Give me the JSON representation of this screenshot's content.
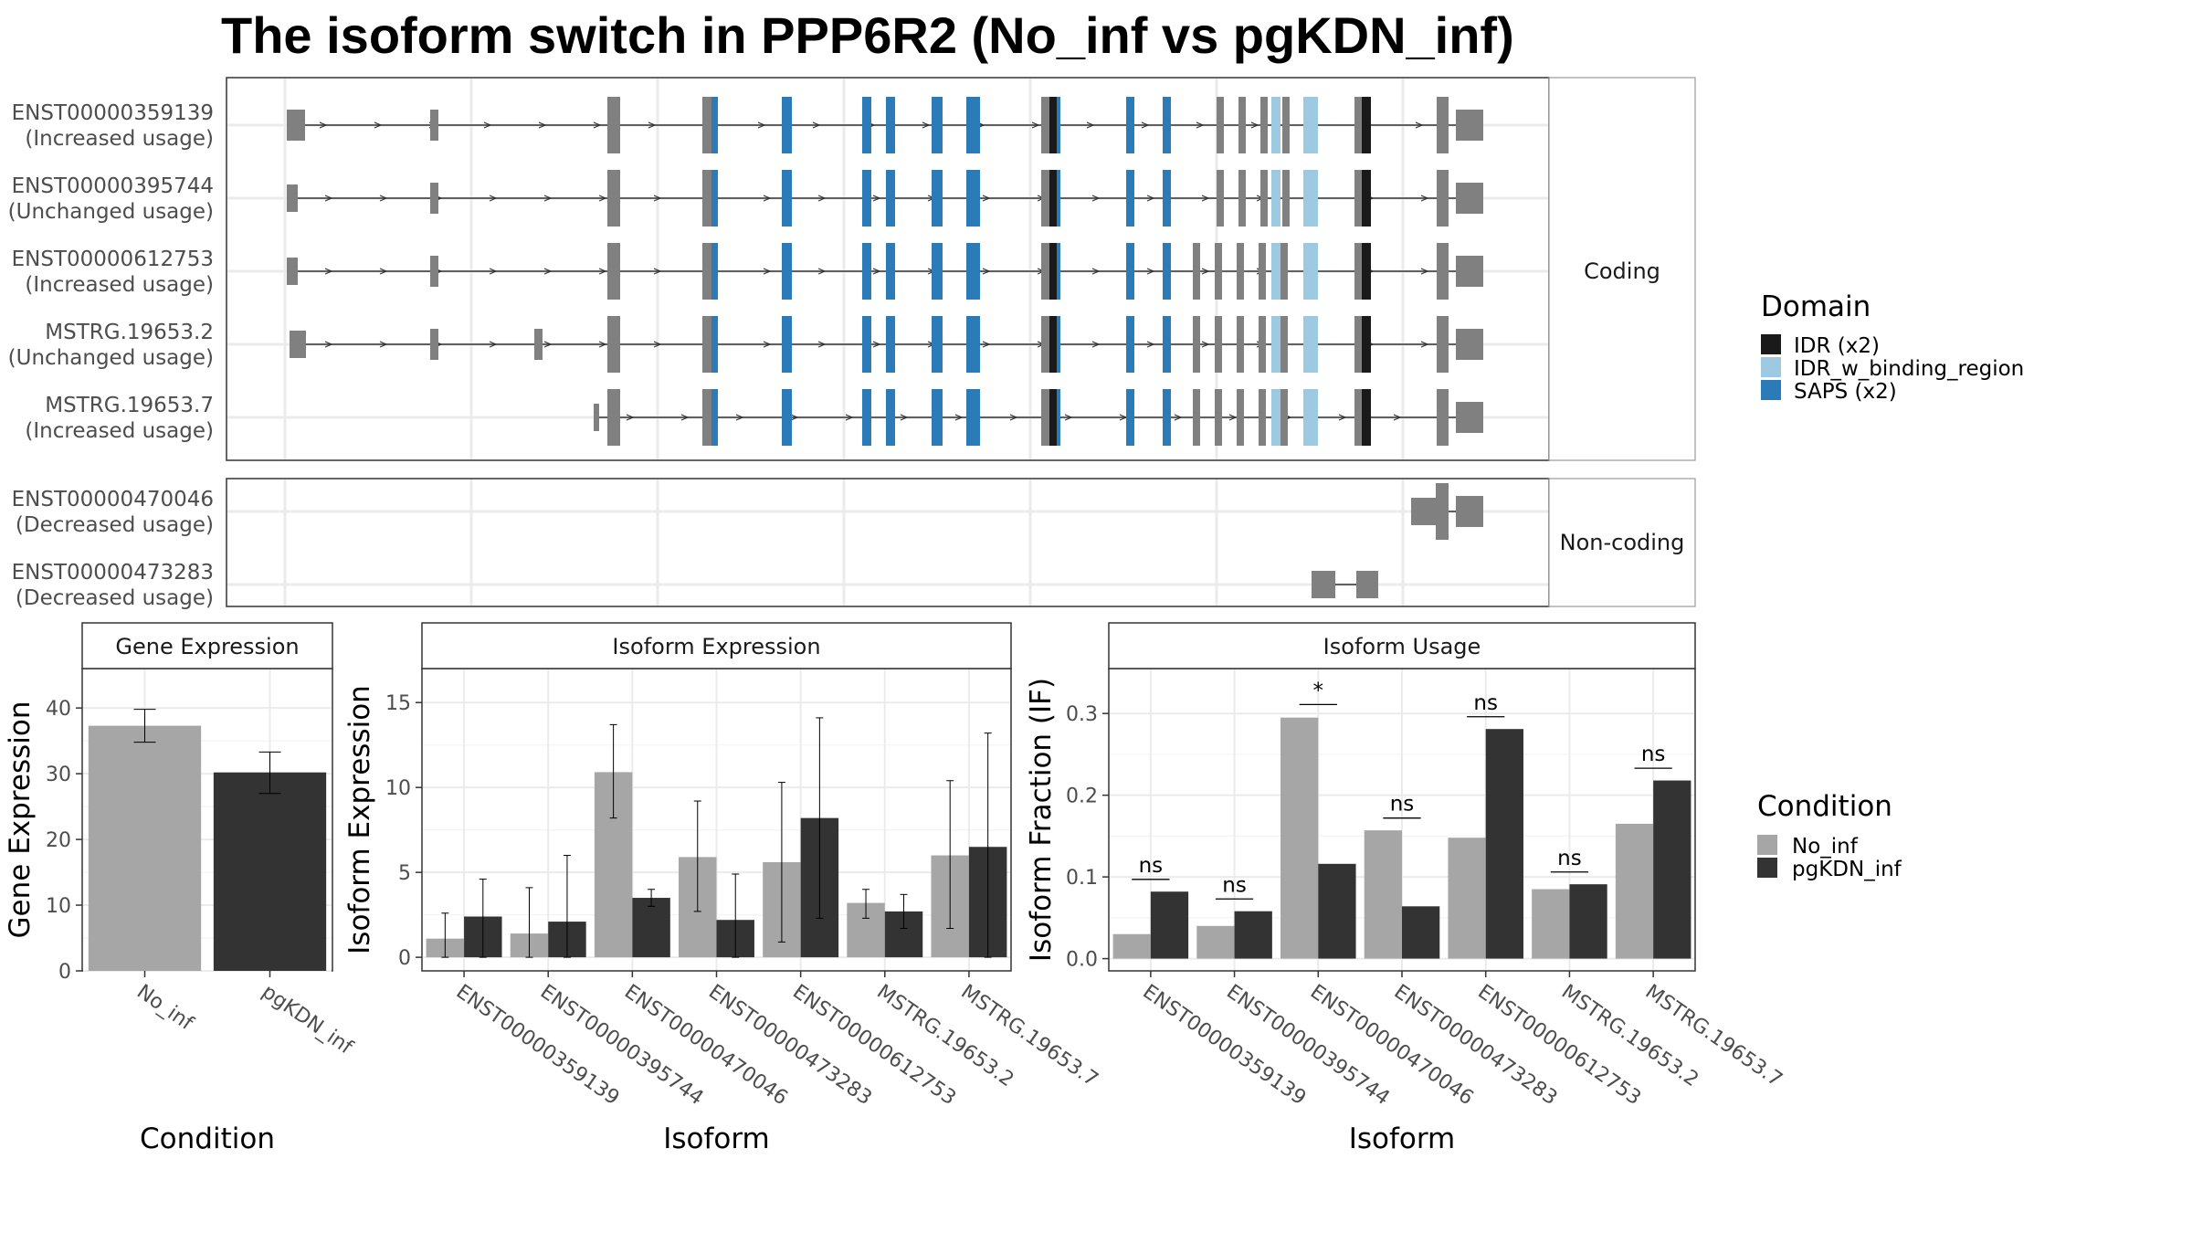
{
  "title": "The isoform switch in PPP6R2 (No_inf vs pgKDN_inf)",
  "colors": {
    "No_inf": "#a6a6a6",
    "pgKDN_inf": "#333333",
    "exon": "#808080",
    "IDR": "#1a1a1a",
    "IDR_w_binding_region": "#9ecae1",
    "SAPS": "#2b7bb9"
  },
  "structure": {
    "coding_label": "Coding",
    "noncoding_label": "Non-coding",
    "coding": [
      {
        "id": "ENST00000359139",
        "usage": "(Increased usage)",
        "extra_exon": false,
        "starts_late": false
      },
      {
        "id": "ENST00000395744",
        "usage": "(Unchanged usage)",
        "extra_exon": false,
        "starts_late": false
      },
      {
        "id": "ENST00000612753",
        "usage": "(Increased usage)",
        "extra_exon": true,
        "starts_late": false
      },
      {
        "id": "MSTRG.19653.2",
        "usage": "(Unchanged usage)",
        "extra_exon": true,
        "starts_late": false
      },
      {
        "id": "MSTRG.19653.7",
        "usage": "(Increased usage)",
        "extra_exon": true,
        "starts_late": true
      }
    ],
    "noncoding": [
      {
        "id": "ENST00000470046",
        "usage": "(Decreased usage)"
      },
      {
        "id": "ENST00000473283",
        "usage": "(Decreased usage)"
      }
    ]
  },
  "legend_domain": {
    "title": "Domain",
    "items": [
      {
        "label": "IDR (x2)",
        "color": "#1a1a1a"
      },
      {
        "label": "IDR_w_binding_region",
        "color": "#9ecae1"
      },
      {
        "label": "SAPS (x2)",
        "color": "#2b7bb9"
      }
    ]
  },
  "legend_condition": {
    "title": "Condition",
    "items": [
      {
        "label": "No_inf",
        "color": "#a6a6a6"
      },
      {
        "label": "pgKDN_inf",
        "color": "#333333"
      }
    ]
  },
  "chart_data": [
    {
      "type": "bar",
      "strip": "Gene Expression",
      "xlabel": "Condition",
      "ylabel": "Gene Expression",
      "categories": [
        "No_inf",
        "pgKDN_inf"
      ],
      "values": [
        37.3,
        30.2
      ],
      "errors": [
        [
          34.8,
          39.8
        ],
        [
          27.0,
          33.3
        ]
      ],
      "ylim": [
        0,
        46
      ],
      "yticks": [
        0,
        10,
        20,
        30,
        40
      ]
    },
    {
      "type": "bar",
      "strip": "Isoform Expression",
      "xlabel": "Isoform",
      "ylabel": "Isoform Expression",
      "categories": [
        "ENST00000359139",
        "ENST00000395744",
        "ENST00000470046",
        "ENST00000473283",
        "ENST00000612753",
        "MSTRG.19653.2",
        "MSTRG.19653.7"
      ],
      "series": [
        {
          "name": "No_inf",
          "values": [
            1.1,
            1.4,
            10.9,
            5.9,
            5.6,
            3.2,
            6.0
          ],
          "errors": [
            [
              0,
              2.6
            ],
            [
              0,
              4.1
            ],
            [
              8.2,
              13.7
            ],
            [
              2.7,
              9.2
            ],
            [
              0.9,
              10.3
            ],
            [
              2.3,
              4.0
            ],
            [
              1.7,
              10.4
            ]
          ]
        },
        {
          "name": "pgKDN_inf",
          "values": [
            2.4,
            2.1,
            3.5,
            2.2,
            8.2,
            2.7,
            6.5
          ],
          "errors": [
            [
              0,
              4.6
            ],
            [
              0,
              6.0
            ],
            [
              3.0,
              4.0
            ],
            [
              0,
              4.9
            ],
            [
              2.3,
              14.1
            ],
            [
              1.7,
              3.7
            ],
            [
              0,
              13.2
            ]
          ]
        }
      ],
      "ylim": [
        -0.8,
        17.0
      ],
      "yticks": [
        0,
        5,
        10,
        15
      ]
    },
    {
      "type": "bar",
      "strip": "Isoform Usage",
      "xlabel": "Isoform",
      "ylabel": "Isoform Fraction (IF)",
      "categories": [
        "ENST00000359139",
        "ENST00000395744",
        "ENST00000470046",
        "ENST00000473283",
        "ENST00000612753",
        "MSTRG.19653.2",
        "MSTRG.19653.7"
      ],
      "series": [
        {
          "name": "No_inf",
          "values": [
            0.03,
            0.04,
            0.295,
            0.157,
            0.148,
            0.085,
            0.165
          ]
        },
        {
          "name": "pgKDN_inf",
          "values": [
            0.082,
            0.058,
            0.116,
            0.064,
            0.281,
            0.091,
            0.218
          ]
        }
      ],
      "significance": [
        "ns",
        "ns",
        "*",
        "ns",
        "ns",
        "ns",
        "ns"
      ],
      "sig_levels": [
        0.097,
        0.073,
        0.311,
        0.172,
        0.296,
        0.106,
        0.233
      ],
      "ylim": [
        -0.015,
        0.355
      ],
      "yticks": [
        0.0,
        0.1,
        0.2,
        0.3
      ],
      "ytick_labels": [
        "0.0",
        "0.1",
        "0.2",
        "0.3"
      ]
    }
  ]
}
